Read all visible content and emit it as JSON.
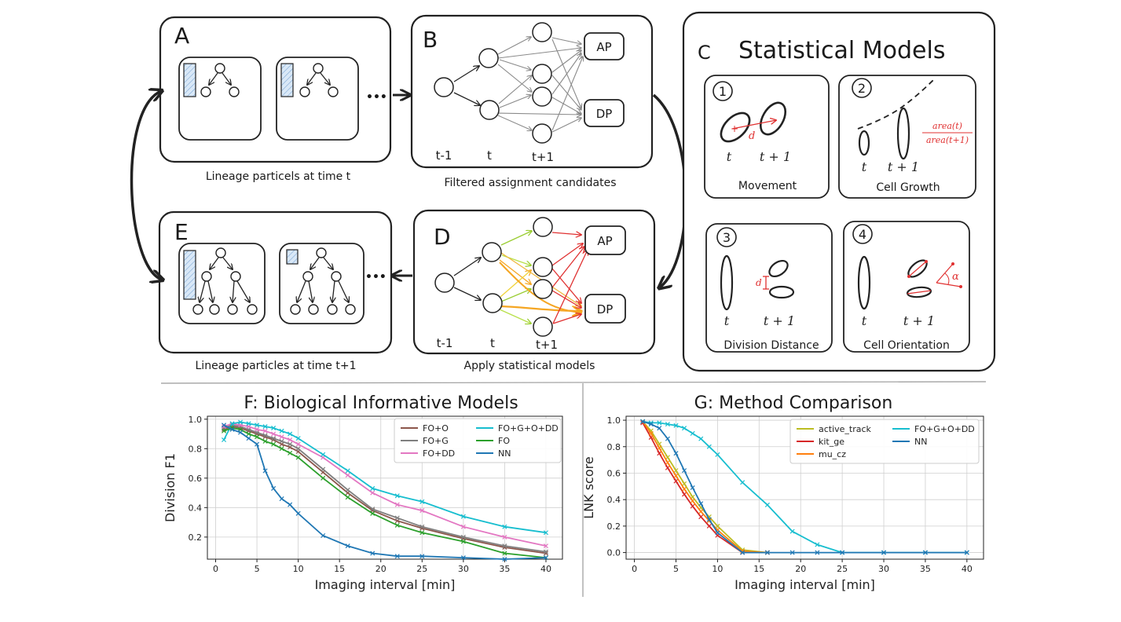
{
  "panels": {
    "A": {
      "letter": "A",
      "caption": "Lineage particels at time t",
      "ellipsis": "•••"
    },
    "B": {
      "letter": "B",
      "caption": "Filtered assignment candidates",
      "t_prev": "t-1",
      "t_now": "t",
      "t_next": "t+1",
      "ap": "AP",
      "dp": "DP"
    },
    "C": {
      "letter": "C",
      "title": "Statistical Models",
      "m1": {
        "num": "1",
        "label": "Movement",
        "d": "d",
        "t": "t",
        "t1": "t + 1"
      },
      "m2": {
        "num": "2",
        "label": "Cell Growth",
        "t": "t",
        "t1": "t + 1",
        "num_expr": "area(t)",
        "den_expr": "area(t+1)"
      },
      "m3": {
        "num": "3",
        "label": "Division Distance",
        "d": "d",
        "t": "t",
        "t1": "t + 1"
      },
      "m4": {
        "num": "4",
        "label": "Cell Orientation",
        "alpha": "α",
        "t": "t",
        "t1": "t + 1"
      }
    },
    "D": {
      "letter": "D",
      "caption": "Apply statistical models",
      "t_prev": "t-1",
      "t_now": "t",
      "t_next": "t+1",
      "ap": "AP",
      "dp": "DP"
    },
    "E": {
      "letter": "E",
      "caption": "Lineage particles at time t+1",
      "ellipsis": "•••"
    }
  },
  "colors": {
    "ink": "#1a1a1a",
    "red": "#e03131",
    "hatch": "#a5c8ec",
    "yellowgreen": "#b8e04a",
    "orange": "#f5a623"
  },
  "chart_data": [
    {
      "type": "line",
      "title": "F: Biological Informative Models",
      "xlabel": "Imaging interval [min]",
      "ylabel": "Division F1",
      "xlim": [
        -1,
        42
      ],
      "ylim": [
        0.05,
        1.02
      ],
      "xticks": [
        0,
        5,
        10,
        15,
        20,
        25,
        30,
        35,
        40
      ],
      "yticks": [
        0.2,
        0.4,
        0.6,
        0.8,
        1.0
      ],
      "grid": true,
      "legend_position": "top-right",
      "x": [
        1,
        2,
        3,
        4,
        5,
        6,
        7,
        8,
        9,
        10,
        13,
        16,
        19,
        22,
        25,
        30,
        35,
        40
      ],
      "series": [
        {
          "name": "FO+O",
          "color": "#8c564b",
          "values": [
            0.93,
            0.95,
            0.94,
            0.92,
            0.9,
            0.88,
            0.86,
            0.83,
            0.81,
            0.78,
            0.64,
            0.5,
            0.38,
            0.31,
            0.26,
            0.19,
            0.13,
            0.09
          ]
        },
        {
          "name": "FO+G",
          "color": "#7f7f7f",
          "values": [
            0.94,
            0.96,
            0.95,
            0.93,
            0.91,
            0.89,
            0.87,
            0.85,
            0.83,
            0.8,
            0.66,
            0.52,
            0.39,
            0.33,
            0.27,
            0.2,
            0.14,
            0.1
          ]
        },
        {
          "name": "FO+DD",
          "color": "#e377c2",
          "values": [
            0.95,
            0.97,
            0.96,
            0.95,
            0.93,
            0.92,
            0.9,
            0.88,
            0.86,
            0.83,
            0.74,
            0.62,
            0.5,
            0.42,
            0.38,
            0.27,
            0.2,
            0.14
          ]
        },
        {
          "name": "FO+G+O+DD",
          "color": "#17becf",
          "values": [
            0.86,
            0.97,
            0.98,
            0.97,
            0.96,
            0.95,
            0.94,
            0.92,
            0.9,
            0.87,
            0.76,
            0.65,
            0.53,
            0.48,
            0.44,
            0.34,
            0.27,
            0.23
          ]
        },
        {
          "name": "FO",
          "color": "#2ca02c",
          "values": [
            0.92,
            0.94,
            0.93,
            0.9,
            0.88,
            0.85,
            0.83,
            0.8,
            0.77,
            0.74,
            0.6,
            0.47,
            0.36,
            0.28,
            0.23,
            0.17,
            0.09,
            0.06
          ]
        },
        {
          "name": "NN",
          "color": "#1f77b4",
          "values": [
            0.96,
            0.93,
            0.91,
            0.87,
            0.83,
            0.65,
            0.53,
            0.46,
            0.42,
            0.36,
            0.21,
            0.14,
            0.09,
            0.07,
            0.07,
            0.06,
            0.05,
            0.06
          ]
        }
      ]
    },
    {
      "type": "line",
      "title": "G: Method Comparison",
      "xlabel": "Imaging interval [min]",
      "ylabel": "LNK score",
      "xlim": [
        -1,
        42
      ],
      "ylim": [
        -0.05,
        1.03
      ],
      "xticks": [
        0,
        5,
        10,
        15,
        20,
        25,
        30,
        35,
        40
      ],
      "yticks": [
        0.0,
        0.2,
        0.4,
        0.6,
        0.8,
        1.0
      ],
      "grid": true,
      "legend_position": "top-right",
      "series": [
        {
          "name": "active_track",
          "color": "#bcbd22",
          "x": [
            1,
            2,
            3,
            4,
            5,
            6,
            7,
            8,
            9,
            10,
            13,
            16
          ],
          "values": [
            0.99,
            0.92,
            0.82,
            0.72,
            0.62,
            0.52,
            0.42,
            0.34,
            0.27,
            0.2,
            0.02,
            0.0
          ]
        },
        {
          "name": "kit_ge",
          "color": "#d62728",
          "x": [
            1,
            2,
            3,
            4,
            5,
            6,
            7,
            8,
            9,
            10,
            13,
            16
          ],
          "values": [
            0.98,
            0.87,
            0.75,
            0.64,
            0.54,
            0.44,
            0.35,
            0.27,
            0.2,
            0.13,
            0.0,
            0.0
          ]
        },
        {
          "name": "mu_cz",
          "color": "#ff7f0e",
          "x": [
            1,
            2,
            3,
            4,
            5,
            6,
            7,
            8,
            9,
            10,
            13,
            16
          ],
          "values": [
            0.99,
            0.9,
            0.79,
            0.68,
            0.58,
            0.48,
            0.39,
            0.31,
            0.24,
            0.17,
            0.01,
            0.0
          ]
        },
        {
          "name": "FO+G+O+DD",
          "color": "#17becf",
          "x": [
            1,
            2,
            3,
            4,
            5,
            6,
            7,
            8,
            9,
            10,
            13,
            16,
            19,
            22,
            25,
            30,
            35,
            40
          ],
          "values": [
            0.99,
            0.98,
            0.98,
            0.97,
            0.96,
            0.94,
            0.9,
            0.86,
            0.8,
            0.74,
            0.53,
            0.36,
            0.16,
            0.06,
            0.0,
            0.0,
            0.0,
            0.0
          ]
        },
        {
          "name": "NN",
          "color": "#1f77b4",
          "x": [
            1,
            2,
            3,
            4,
            5,
            6,
            7,
            8,
            9,
            10,
            13,
            16,
            19,
            22,
            25,
            30,
            35,
            40
          ],
          "values": [
            0.99,
            0.97,
            0.94,
            0.86,
            0.75,
            0.62,
            0.49,
            0.37,
            0.25,
            0.15,
            0.0,
            0.0,
            0.0,
            0.0,
            0.0,
            0.0,
            0.0,
            0.0
          ]
        }
      ]
    }
  ]
}
